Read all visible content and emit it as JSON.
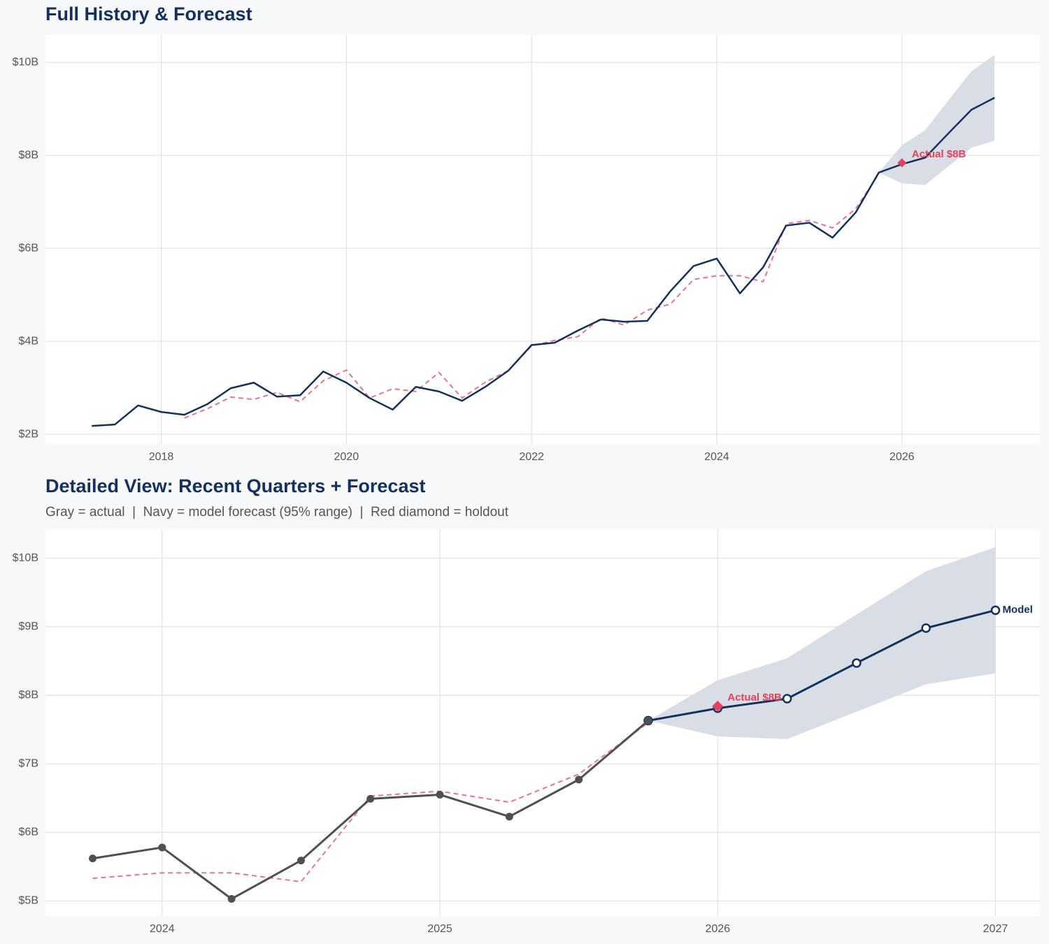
{
  "chart_data": [
    {
      "type": "line",
      "title": "Full History & Forecast",
      "x": [
        2017.25,
        2017.5,
        2017.75,
        2018,
        2018.25,
        2018.5,
        2018.75,
        2019,
        2019.25,
        2019.5,
        2019.75,
        2020,
        2020.25,
        2020.5,
        2020.75,
        2021,
        2021.25,
        2021.5,
        2021.75,
        2022,
        2022.25,
        2022.5,
        2022.75,
        2023,
        2023.25,
        2023.5,
        2023.75,
        2024,
        2024.25,
        2024.5,
        2024.75,
        2025,
        2025.25,
        2025.5,
        2025.75,
        2026,
        2026.25,
        2026.5,
        2026.75,
        2027
      ],
      "series": [
        {
          "color": "#e8758a",
          "dashed": true,
          "width": 2,
          "values": [
            null,
            null,
            null,
            null,
            2.35,
            2.55,
            2.8,
            2.75,
            2.9,
            2.7,
            3.15,
            3.38,
            2.78,
            2.98,
            2.92,
            3.33,
            2.78,
            3.12,
            3.37,
            3.9,
            4.02,
            4.1,
            4.5,
            4.35,
            4.67,
            4.8,
            5.33,
            5.41,
            5.41,
            5.28,
            6.53,
            6.6,
            6.44,
            6.85,
            7.6,
            null,
            null,
            null,
            null,
            null
          ]
        },
        {
          "color": "#13315c",
          "dashed": false,
          "width": 2.5,
          "values": [
            2.18,
            2.21,
            2.62,
            2.48,
            2.42,
            2.65,
            2.99,
            3.11,
            2.81,
            2.84,
            3.35,
            3.11,
            2.78,
            2.53,
            3.02,
            2.92,
            2.72,
            3.02,
            3.37,
            3.92,
            3.97,
            4.23,
            4.47,
            4.42,
            4.44,
            5.08,
            5.62,
            5.78,
            5.03,
            5.59,
            6.49,
            6.55,
            6.23,
            6.77,
            7.63,
            7.81,
            7.95,
            8.47,
            8.98,
            9.24
          ]
        }
      ],
      "band": {
        "color": "#d9dee6",
        "lower": [
          null,
          null,
          null,
          null,
          null,
          null,
          null,
          null,
          null,
          null,
          null,
          null,
          null,
          null,
          null,
          null,
          null,
          null,
          null,
          null,
          null,
          null,
          null,
          null,
          null,
          null,
          null,
          null,
          null,
          null,
          null,
          null,
          null,
          null,
          7.63,
          7.4,
          7.36,
          7.76,
          8.16,
          8.32
        ],
        "upper": [
          null,
          null,
          null,
          null,
          null,
          null,
          null,
          null,
          null,
          null,
          null,
          null,
          null,
          null,
          null,
          null,
          null,
          null,
          null,
          null,
          null,
          null,
          null,
          null,
          null,
          null,
          null,
          null,
          null,
          null,
          null,
          null,
          null,
          null,
          7.63,
          8.22,
          8.54,
          9.18,
          9.81,
          10.16
        ]
      },
      "holdout": {
        "x": 2026,
        "value": 7.84,
        "label": "Actual $8B",
        "color": "#e0435e"
      },
      "xlim": [
        2016.75,
        2027.49
      ],
      "ylim": [
        1.79,
        10.59
      ],
      "xticks": [
        2018,
        2020,
        2022,
        2024,
        2026
      ],
      "yticks": [
        {
          "value": 2,
          "label": "$2B"
        },
        {
          "value": 4,
          "label": "$4B"
        },
        {
          "value": 6,
          "label": "$6B"
        },
        {
          "value": 8,
          "label": "$8B"
        },
        {
          "value": 10,
          "label": "$10B"
        }
      ],
      "grid": true
    },
    {
      "type": "line",
      "title": "Detailed View: Recent Quarters + Forecast",
      "subtitle": "Gray = actual  |  Navy = model forecast (95% range)  |  Red diamond = holdout",
      "x": [
        2023.75,
        2024,
        2024.25,
        2024.5,
        2024.75,
        2025,
        2025.25,
        2025.5,
        2025.75,
        2026,
        2026.25,
        2026.5,
        2026.75,
        2027
      ],
      "series": [
        {
          "color": "#e8758a",
          "dashed": true,
          "width": 2,
          "values": [
            5.33,
            5.41,
            5.41,
            5.28,
            6.53,
            6.6,
            6.44,
            6.85,
            7.6,
            null,
            null,
            null,
            null,
            null
          ]
        },
        {
          "color": "#13315c",
          "dashed": false,
          "width": 3,
          "marker": "open",
          "end_label": "Model",
          "values": [
            null,
            null,
            null,
            null,
            null,
            null,
            null,
            null,
            7.63,
            7.81,
            7.95,
            8.47,
            8.98,
            9.24
          ]
        },
        {
          "color": "#505050",
          "dashed": false,
          "width": 3,
          "marker": "filled",
          "values": [
            5.62,
            5.78,
            5.03,
            5.59,
            6.49,
            6.55,
            6.23,
            6.77,
            7.63,
            null,
            null,
            null,
            null,
            null
          ]
        }
      ],
      "band": {
        "color": "#d9dee6",
        "lower": [
          null,
          null,
          null,
          null,
          null,
          null,
          null,
          null,
          7.63,
          7.4,
          7.36,
          7.76,
          8.16,
          8.32
        ],
        "upper": [
          null,
          null,
          null,
          null,
          null,
          null,
          null,
          null,
          7.63,
          8.22,
          8.54,
          9.18,
          9.81,
          10.16
        ]
      },
      "holdout": {
        "x": 2026,
        "value": 7.84,
        "label": "Actual $8B",
        "color": "#e0435e"
      },
      "xlim": [
        2023.58,
        2027.16
      ],
      "ylim": [
        4.78,
        10.42
      ],
      "xticks": [
        2024,
        2025,
        2026,
        2027
      ],
      "yticks": [
        {
          "value": 5,
          "label": "$5B"
        },
        {
          "value": 6,
          "label": "$6B"
        },
        {
          "value": 7,
          "label": "$7B"
        },
        {
          "value": 8,
          "label": "$8B"
        },
        {
          "value": 9,
          "label": "$9B"
        },
        {
          "value": 10,
          "label": "$10B"
        }
      ],
      "grid": true
    }
  ]
}
